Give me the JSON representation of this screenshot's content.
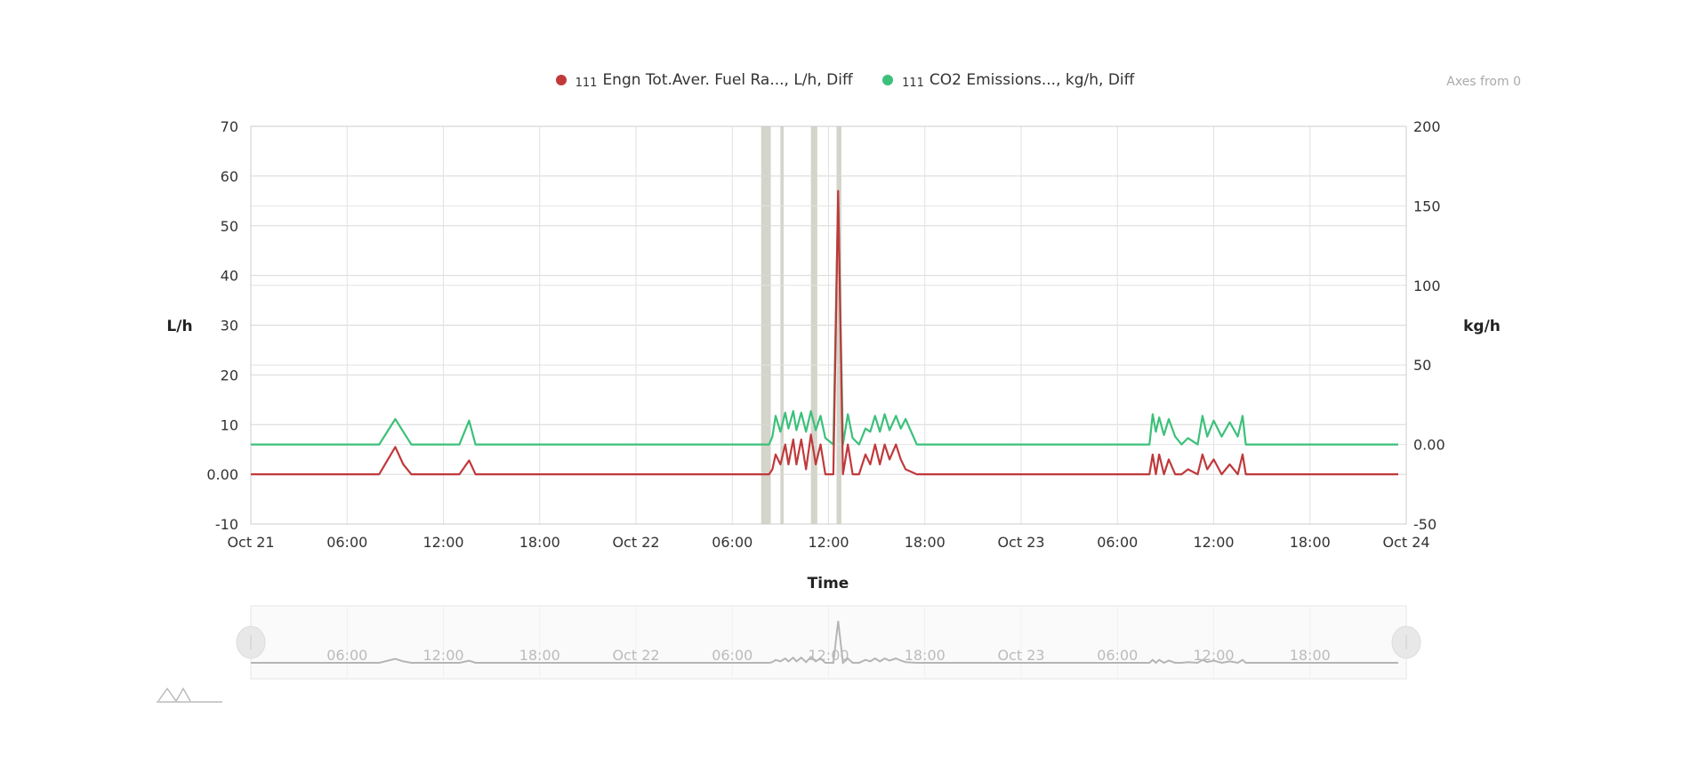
{
  "legend_toggle": "Axes from 0",
  "chart_data": {
    "type": "line",
    "title": "",
    "xlabel": "Time",
    "ylabel_left": "L/h",
    "ylabel_right": "kg/h",
    "xlim": [
      "Oct 21 00:00",
      "Oct 24 00:00"
    ],
    "ylim_left": [
      -10,
      70
    ],
    "ylim_right": [
      -50,
      200
    ],
    "grid": true,
    "legend_position": "top",
    "x_ticks": [
      "Oct 21",
      "06:00",
      "12:00",
      "18:00",
      "Oct 22",
      "06:00",
      "12:00",
      "18:00",
      "Oct 23",
      "06:00",
      "12:00",
      "18:00",
      "Oct 24"
    ],
    "y_ticks_left": [
      "70",
      "60",
      "50",
      "40",
      "30",
      "20",
      "10",
      "0.00",
      "-10"
    ],
    "y_ticks_right": [
      "200",
      "150",
      "100",
      "50",
      "0.00",
      "-50"
    ],
    "navigator_ticks": [
      "06:00",
      "12:00",
      "18:00",
      "Oct 22",
      "06:00",
      "12:00",
      "18:00",
      "Oct 23",
      "06:00",
      "12:00",
      "18:00"
    ],
    "plot_bands": [
      [
        "Oct 22 07:48",
        "Oct 22 08:24"
      ],
      [
        "Oct 22 09:00",
        "Oct 22 09:12"
      ],
      [
        "Oct 22 10:54",
        "Oct 22 11:18"
      ],
      [
        "Oct 22 12:30",
        "Oct 22 12:48"
      ]
    ],
    "band_color": "#c9c9bd",
    "series": [
      {
        "prefix": "111",
        "name": "Engn Tot.Aver. Fuel Ra..., L/h, Diff",
        "axis": "left",
        "color": "#c0393b",
        "points": [
          [
            "Oct 21 00:00",
            0
          ],
          [
            "Oct 21 08:00",
            0
          ],
          [
            "Oct 21 09:00",
            5.5
          ],
          [
            "Oct 21 09:30",
            2
          ],
          [
            "Oct 21 10:00",
            0
          ],
          [
            "Oct 21 13:00",
            0
          ],
          [
            "Oct 21 13:36",
            2.8
          ],
          [
            "Oct 21 14:00",
            0
          ],
          [
            "Oct 22 08:18",
            0
          ],
          [
            "Oct 22 08:30",
            1
          ],
          [
            "Oct 22 08:42",
            4
          ],
          [
            "Oct 22 09:00",
            2
          ],
          [
            "Oct 22 09:18",
            6
          ],
          [
            "Oct 22 09:30",
            2
          ],
          [
            "Oct 22 09:48",
            7
          ],
          [
            "Oct 22 10:00",
            2
          ],
          [
            "Oct 22 10:18",
            7
          ],
          [
            "Oct 22 10:36",
            1
          ],
          [
            "Oct 22 10:54",
            8
          ],
          [
            "Oct 22 11:12",
            2
          ],
          [
            "Oct 22 11:30",
            6
          ],
          [
            "Oct 22 11:48",
            0
          ],
          [
            "Oct 22 12:18",
            0
          ],
          [
            "Oct 22 12:36",
            57
          ],
          [
            "Oct 22 12:54",
            0
          ],
          [
            "Oct 22 13:12",
            6
          ],
          [
            "Oct 22 13:30",
            0
          ],
          [
            "Oct 22 13:54",
            0
          ],
          [
            "Oct 22 14:18",
            4
          ],
          [
            "Oct 22 14:36",
            2
          ],
          [
            "Oct 22 14:54",
            6
          ],
          [
            "Oct 22 15:12",
            2
          ],
          [
            "Oct 22 15:30",
            6
          ],
          [
            "Oct 22 15:48",
            3
          ],
          [
            "Oct 22 16:12",
            6
          ],
          [
            "Oct 22 16:30",
            3
          ],
          [
            "Oct 22 16:48",
            1
          ],
          [
            "Oct 22 17:30",
            0
          ],
          [
            "Oct 23 08:00",
            0
          ],
          [
            "Oct 23 08:12",
            4
          ],
          [
            "Oct 23 08:24",
            0
          ],
          [
            "Oct 23 08:36",
            4
          ],
          [
            "Oct 23 08:54",
            0
          ],
          [
            "Oct 23 09:12",
            3
          ],
          [
            "Oct 23 09:36",
            0
          ],
          [
            "Oct 23 10:00",
            0
          ],
          [
            "Oct 23 10:24",
            1
          ],
          [
            "Oct 23 11:00",
            0
          ],
          [
            "Oct 23 11:18",
            4
          ],
          [
            "Oct 23 11:36",
            1
          ],
          [
            "Oct 23 12:00",
            3
          ],
          [
            "Oct 23 12:30",
            0
          ],
          [
            "Oct 23 13:00",
            2
          ],
          [
            "Oct 23 13:30",
            0
          ],
          [
            "Oct 23 13:48",
            4
          ],
          [
            "Oct 23 14:00",
            0
          ],
          [
            "Oct 23 23:30",
            0
          ]
        ]
      },
      {
        "prefix": "111",
        "name": "CO2 Emissions..., kg/h, Diff",
        "axis": "right",
        "color": "#3cc07a",
        "points": [
          [
            "Oct 21 00:00",
            0
          ],
          [
            "Oct 21 08:00",
            0
          ],
          [
            "Oct 21 09:00",
            16
          ],
          [
            "Oct 21 09:30",
            8
          ],
          [
            "Oct 21 10:00",
            0
          ],
          [
            "Oct 21 13:00",
            0
          ],
          [
            "Oct 21 13:36",
            15
          ],
          [
            "Oct 21 14:00",
            0
          ],
          [
            "Oct 22 08:18",
            0
          ],
          [
            "Oct 22 08:30",
            5
          ],
          [
            "Oct 22 08:42",
            18
          ],
          [
            "Oct 22 09:00",
            8
          ],
          [
            "Oct 22 09:18",
            20
          ],
          [
            "Oct 22 09:30",
            10
          ],
          [
            "Oct 22 09:48",
            21
          ],
          [
            "Oct 22 10:00",
            9
          ],
          [
            "Oct 22 10:18",
            20
          ],
          [
            "Oct 22 10:36",
            8
          ],
          [
            "Oct 22 10:54",
            21
          ],
          [
            "Oct 22 11:12",
            9
          ],
          [
            "Oct 22 11:30",
            18
          ],
          [
            "Oct 22 11:48",
            4
          ],
          [
            "Oct 22 12:18",
            0
          ],
          [
            "Oct 22 12:36",
            157
          ],
          [
            "Oct 22 12:54",
            0
          ],
          [
            "Oct 22 13:12",
            19
          ],
          [
            "Oct 22 13:30",
            4
          ],
          [
            "Oct 22 13:54",
            0
          ],
          [
            "Oct 22 14:18",
            10
          ],
          [
            "Oct 22 14:36",
            8
          ],
          [
            "Oct 22 14:54",
            18
          ],
          [
            "Oct 22 15:12",
            8
          ],
          [
            "Oct 22 15:30",
            19
          ],
          [
            "Oct 22 15:48",
            9
          ],
          [
            "Oct 22 16:12",
            18
          ],
          [
            "Oct 22 16:30",
            10
          ],
          [
            "Oct 22 16:48",
            16
          ],
          [
            "Oct 22 17:30",
            0
          ],
          [
            "Oct 23 08:00",
            0
          ],
          [
            "Oct 23 08:12",
            19
          ],
          [
            "Oct 23 08:24",
            8
          ],
          [
            "Oct 23 08:36",
            17
          ],
          [
            "Oct 23 08:54",
            6
          ],
          [
            "Oct 23 09:12",
            16
          ],
          [
            "Oct 23 09:36",
            5
          ],
          [
            "Oct 23 10:00",
            0
          ],
          [
            "Oct 23 10:24",
            4
          ],
          [
            "Oct 23 11:00",
            0
          ],
          [
            "Oct 23 11:18",
            18
          ],
          [
            "Oct 23 11:36",
            5
          ],
          [
            "Oct 23 12:00",
            15
          ],
          [
            "Oct 23 12:30",
            5
          ],
          [
            "Oct 23 13:00",
            14
          ],
          [
            "Oct 23 13:30",
            5
          ],
          [
            "Oct 23 13:48",
            18
          ],
          [
            "Oct 23 14:00",
            0
          ],
          [
            "Oct 23 23:30",
            0
          ]
        ]
      }
    ]
  }
}
